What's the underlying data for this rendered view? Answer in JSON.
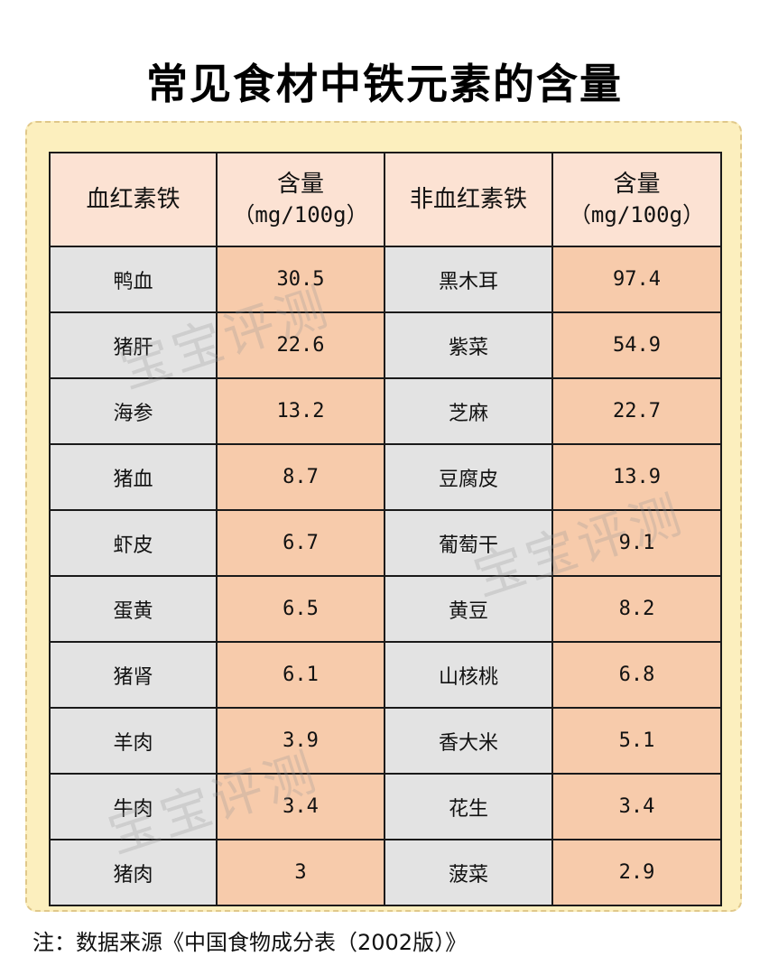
{
  "title": "常见食材中铁元素的含量",
  "table": {
    "headers": [
      {
        "label": "血红素铁",
        "unit": ""
      },
      {
        "label": "含量",
        "unit": "（mg/100g）"
      },
      {
        "label": "非血红素铁",
        "unit": ""
      },
      {
        "label": "含量",
        "unit": "（mg/100g）"
      }
    ],
    "rows": [
      {
        "heme_food": "鸭血",
        "heme_iron": "30.5",
        "nonheme_food": "黑木耳",
        "nonheme_iron": "97.4"
      },
      {
        "heme_food": "猪肝",
        "heme_iron": "22.6",
        "nonheme_food": "紫菜",
        "nonheme_iron": "54.9"
      },
      {
        "heme_food": "海参",
        "heme_iron": "13.2",
        "nonheme_food": "芝麻",
        "nonheme_iron": "22.7"
      },
      {
        "heme_food": "猪血",
        "heme_iron": "8.7",
        "nonheme_food": "豆腐皮",
        "nonheme_iron": "13.9"
      },
      {
        "heme_food": "虾皮",
        "heme_iron": "6.7",
        "nonheme_food": "葡萄干",
        "nonheme_iron": "9.1"
      },
      {
        "heme_food": "蛋黄",
        "heme_iron": "6.5",
        "nonheme_food": "黄豆",
        "nonheme_iron": "8.2"
      },
      {
        "heme_food": "猪肾",
        "heme_iron": "6.1",
        "nonheme_food": "山核桃",
        "nonheme_iron": "6.8"
      },
      {
        "heme_food": "羊肉",
        "heme_iron": "3.9",
        "nonheme_food": "香大米",
        "nonheme_iron": "5.1"
      },
      {
        "heme_food": "牛肉",
        "heme_iron": "3.4",
        "nonheme_food": "花生",
        "nonheme_iron": "3.4"
      },
      {
        "heme_food": "猪肉",
        "heme_iron": "3",
        "nonheme_food": "菠菜",
        "nonheme_iron": "2.9"
      }
    ]
  },
  "watermark": "宝宝评测",
  "note": "注：数据来源《中国食物成分表（2002版）》",
  "colors": {
    "panel": "#fcefbe",
    "header": "#fce2d3",
    "name_cell": "#e3e3e3",
    "value_cell": "#f7cbab"
  }
}
